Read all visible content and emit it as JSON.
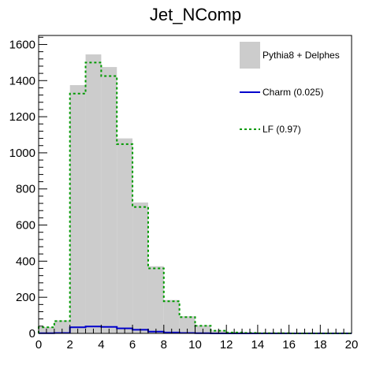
{
  "chart_data": {
    "type": "bar",
    "title": "Jet_NComp",
    "xlabel": "",
    "ylabel": "",
    "xlim": [
      0,
      20
    ],
    "ylim": [
      0,
      1650
    ],
    "bin_width": 1,
    "x_ticks": [
      0,
      2,
      4,
      6,
      8,
      10,
      12,
      14,
      16,
      18,
      20
    ],
    "y_ticks": [
      0,
      200,
      400,
      600,
      800,
      1000,
      1200,
      1400,
      1600
    ],
    "grid": false,
    "legend_position": "top-right",
    "bin_edges": [
      0,
      1,
      2,
      3,
      4,
      5,
      6,
      7,
      8,
      9,
      10,
      11,
      12,
      13,
      14,
      15,
      16,
      17,
      18,
      19,
      20
    ],
    "series": [
      {
        "name": "Pythia8 + Delphes",
        "style": "filled",
        "color": "#cccccc",
        "values": [
          35,
          72,
          1375,
          1545,
          1475,
          1080,
          725,
          372,
          185,
          95,
          45,
          16,
          6,
          3,
          1,
          1,
          0,
          0,
          0,
          0
        ]
      },
      {
        "name": "Charm (0.025)",
        "style": "line",
        "color": "#0000cc",
        "values": [
          1,
          2,
          34,
          38,
          36,
          28,
          20,
          10,
          5,
          2,
          1,
          0,
          0,
          0,
          0,
          0,
          0,
          0,
          0,
          0
        ]
      },
      {
        "name": "LF (0.97)",
        "style": "dashed",
        "color": "#009900",
        "values": [
          34,
          68,
          1328,
          1500,
          1425,
          1048,
          700,
          360,
          178,
          90,
          42,
          15,
          5,
          3,
          1,
          1,
          0,
          0,
          0,
          0
        ]
      }
    ]
  }
}
